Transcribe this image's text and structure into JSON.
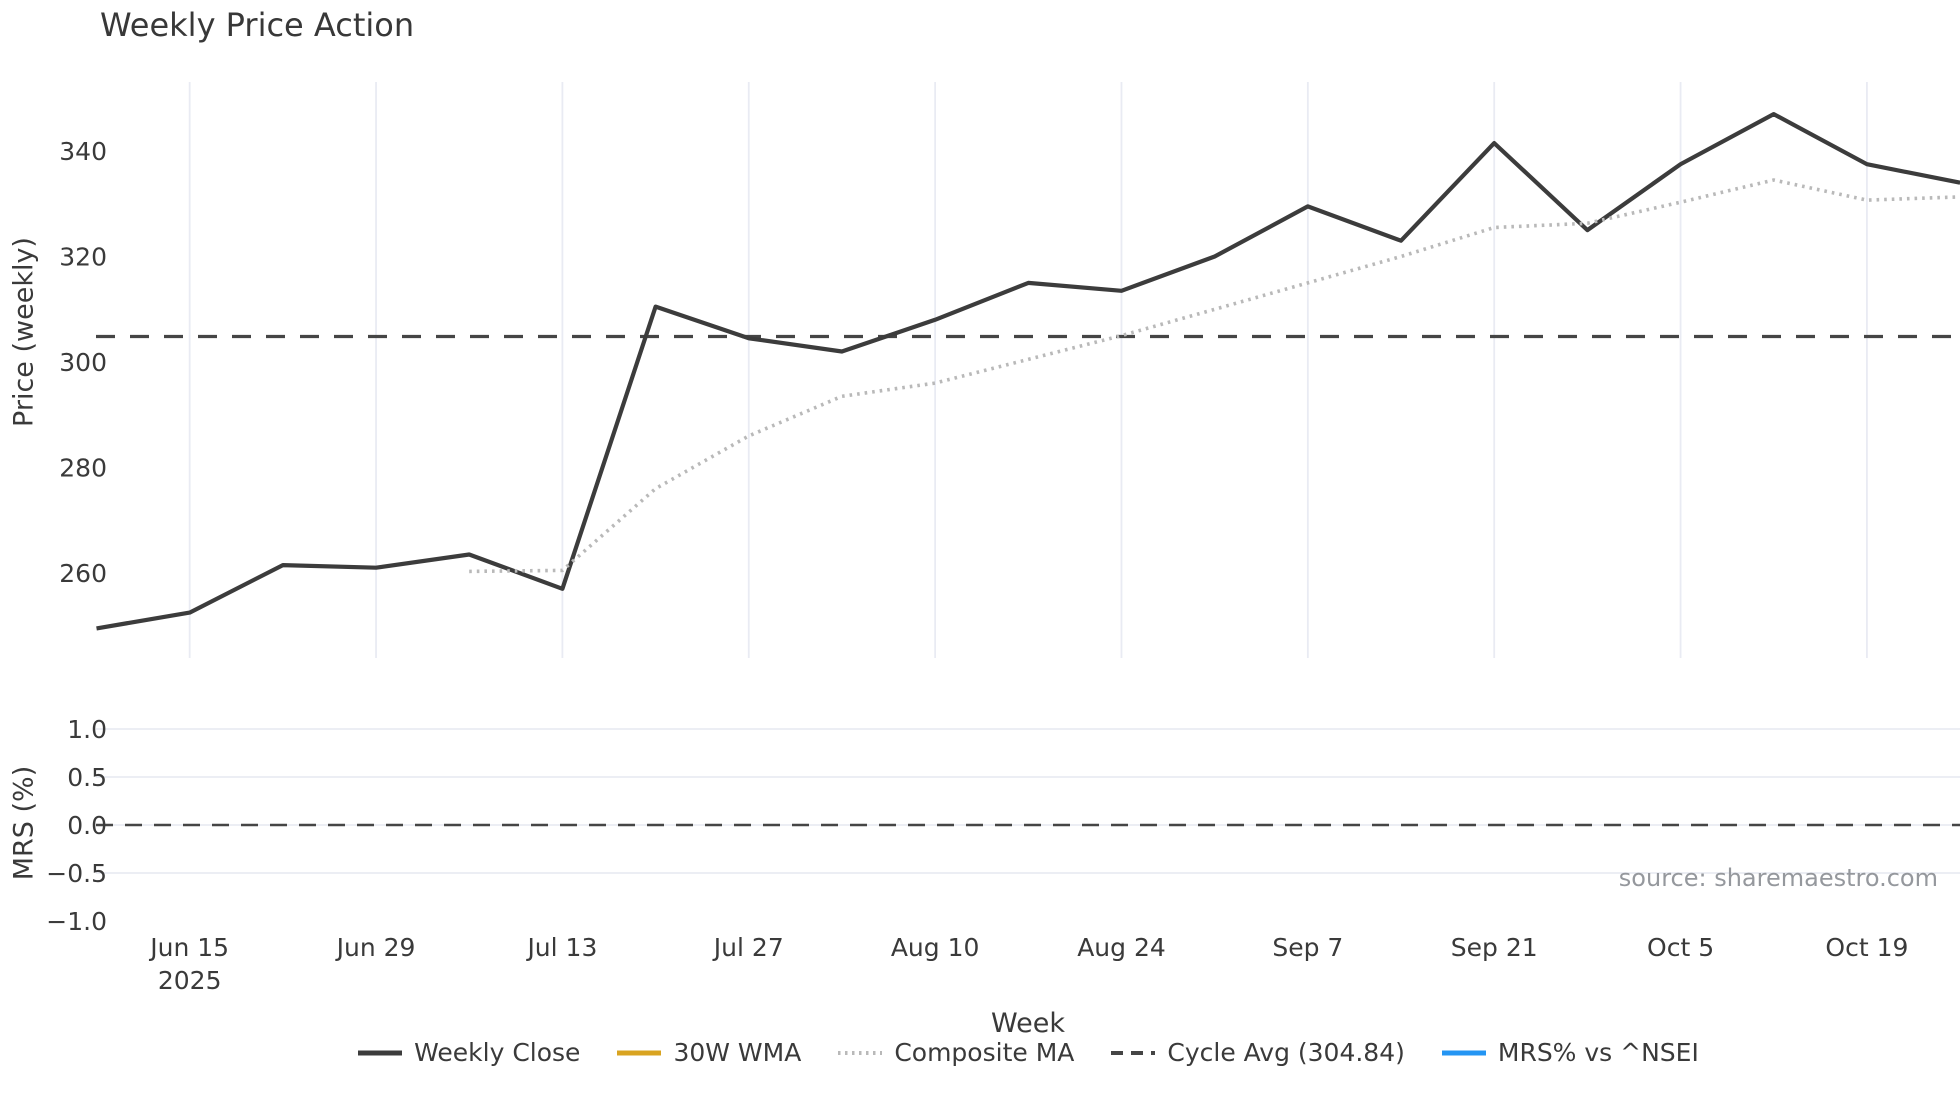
{
  "title": "Weekly Price Action",
  "source_credit": "source: sharemaestro.com",
  "axes": {
    "price": {
      "label": "Price (weekly)",
      "tick_labels": [
        "340",
        "320",
        "300",
        "280",
        "260"
      ]
    },
    "mrs": {
      "label": "MRS (%)",
      "tick_labels": [
        "1.0",
        "0.5",
        "0.0",
        "−0.5",
        "−1.0"
      ]
    },
    "x": {
      "label": "Week",
      "tick_labels": [
        "Jun 15",
        "Jun 29",
        "Jul 13",
        "Jul 27",
        "Aug 10",
        "Aug 24",
        "Sep 7",
        "Sep 21",
        "Oct 5",
        "Oct 19"
      ],
      "year_label": "2025"
    }
  },
  "legend": [
    {
      "label": "Weekly Close",
      "color": "#3c3c3c",
      "style": "solid"
    },
    {
      "label": "30W WMA",
      "color": "#d9a421",
      "style": "solid"
    },
    {
      "label": "Composite MA",
      "color": "#b9b9b9",
      "style": "dotted"
    },
    {
      "label": "Cycle Avg (304.84)",
      "color": "#454545",
      "style": "dashed"
    },
    {
      "label": "MRS% vs ^NSEI",
      "color": "#2495f3",
      "style": "solid"
    }
  ],
  "chart_data": [
    {
      "type": "line",
      "panel": "price",
      "title": "Weekly Price Action",
      "xlabel": "Week",
      "ylabel": "Price (weekly)",
      "year": "2025",
      "x": [
        "Jun 8",
        "Jun 15",
        "Jun 22",
        "Jun 29",
        "Jul 6",
        "Jul 13",
        "Jul 20",
        "Jul 27",
        "Aug 3",
        "Aug 10",
        "Aug 17",
        "Aug 24",
        "Aug 31",
        "Sep 7",
        "Sep 14",
        "Sep 21",
        "Sep 28",
        "Oct 5",
        "Oct 12",
        "Oct 19",
        "Oct 26"
      ],
      "series": [
        {
          "name": "Weekly Close",
          "color": "#3c3c3c",
          "style": "solid",
          "values": [
            249.5,
            252.5,
            261.5,
            261,
            263.5,
            257,
            310.5,
            304.5,
            302,
            308,
            315,
            313.5,
            320,
            329.5,
            323,
            341.5,
            325,
            337.5,
            347,
            337.5,
            334
          ]
        },
        {
          "name": "30W WMA",
          "color": "#d9a421",
          "style": "solid",
          "values": []
        },
        {
          "name": "Composite MA",
          "color": "#b9b9b9",
          "style": "dotted",
          "values": [
            null,
            null,
            null,
            null,
            260.3,
            260.5,
            276,
            286,
            293.5,
            296,
            300.5,
            305,
            310,
            315,
            320,
            325.5,
            326.3,
            330.3,
            334.5,
            330.7,
            331.3
          ]
        },
        {
          "name": "Cycle Avg",
          "color": "#454545",
          "style": "dashed",
          "constant": 304.84
        }
      ],
      "yticks": [
        260,
        280,
        300,
        320,
        340
      ],
      "ylim": [
        244,
        353
      ],
      "grid": "vertical"
    },
    {
      "type": "line",
      "panel": "mrs",
      "ylabel": "MRS (%)",
      "x_shared_with": "price",
      "series": [
        {
          "name": "MRS% vs ^NSEI",
          "color": "#2495f3",
          "style": "solid",
          "values": []
        },
        {
          "name": "Zero line",
          "color": "#454545",
          "style": "dashed",
          "constant": 0.0
        }
      ],
      "yticks": [
        -1.0,
        -0.5,
        0.0,
        0.5,
        1.0
      ],
      "ylim": [
        -1.1,
        1.2
      ],
      "grid": "horizontal"
    }
  ]
}
